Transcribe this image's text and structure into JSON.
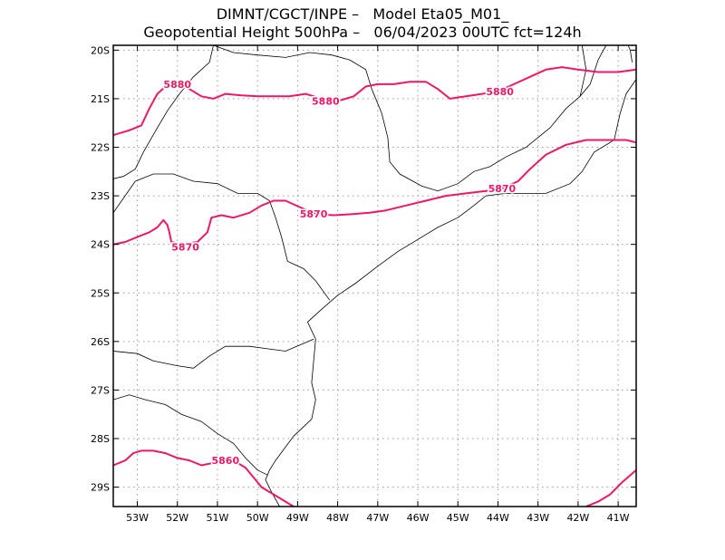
{
  "header": {
    "line1": "DIMNT/CGCT/INPE –   Model Eta05_M01_",
    "line2": "Geopotential Height 500hPa –   06/04/2023 00UTC fct=124h"
  },
  "map": {
    "lon_range": [
      -53.6,
      -40.55
    ],
    "lat_range": [
      -29.4,
      -19.9
    ],
    "lon_ticks": [
      -53,
      -52,
      -51,
      -50,
      -49,
      -48,
      -47,
      -46,
      -45,
      -44,
      -43,
      -42,
      -41
    ],
    "lon_tick_labels": [
      "53W",
      "52W",
      "51W",
      "50W",
      "49W",
      "48W",
      "47W",
      "46W",
      "45W",
      "44W",
      "43W",
      "42W",
      "41W"
    ],
    "lat_ticks": [
      -20,
      -21,
      -22,
      -23,
      -24,
      -25,
      -26,
      -27,
      -28,
      -29
    ],
    "lat_tick_labels": [
      "20S",
      "21S",
      "22S",
      "23S",
      "24S",
      "25S",
      "26S",
      "27S",
      "28S",
      "29S"
    ],
    "colors": {
      "contour": "#ee1866",
      "coast": "#000000",
      "grid": "#999999",
      "frame": "#000000"
    }
  },
  "contours": [
    {
      "value": 5880,
      "labels": [
        "5880",
        "5880",
        "5880"
      ],
      "label_lonlat": [
        [
          -52.0,
          -20.7
        ],
        [
          -48.3,
          -21.05
        ],
        [
          -43.95,
          -20.85
        ]
      ],
      "lonlat": [
        [
          -53.6,
          -21.75
        ],
        [
          -53.2,
          -21.65
        ],
        [
          -52.9,
          -21.55
        ],
        [
          -52.7,
          -21.2
        ],
        [
          -52.5,
          -20.9
        ],
        [
          -52.3,
          -20.75
        ],
        [
          -52.0,
          -20.7
        ],
        [
          -51.7,
          -20.8
        ],
        [
          -51.4,
          -20.95
        ],
        [
          -51.1,
          -21.0
        ],
        [
          -50.8,
          -20.9
        ],
        [
          -50.4,
          -20.93
        ],
        [
          -50.0,
          -20.95
        ],
        [
          -49.6,
          -20.95
        ],
        [
          -49.2,
          -20.95
        ],
        [
          -48.8,
          -20.9
        ],
        [
          -48.4,
          -21.0
        ],
        [
          -48.0,
          -21.05
        ],
        [
          -47.6,
          -20.95
        ],
        [
          -47.3,
          -20.75
        ],
        [
          -47.0,
          -20.7
        ],
        [
          -46.6,
          -20.7
        ],
        [
          -46.2,
          -20.65
        ],
        [
          -45.8,
          -20.65
        ],
        [
          -45.5,
          -20.8
        ],
        [
          -45.2,
          -21.0
        ],
        [
          -44.8,
          -20.95
        ],
        [
          -44.4,
          -20.9
        ],
        [
          -44.0,
          -20.85
        ],
        [
          -43.6,
          -20.7
        ],
        [
          -43.2,
          -20.55
        ],
        [
          -42.8,
          -20.4
        ],
        [
          -42.4,
          -20.35
        ],
        [
          -42.0,
          -20.4
        ],
        [
          -41.5,
          -20.45
        ],
        [
          -41.0,
          -20.45
        ],
        [
          -40.55,
          -20.4
        ]
      ]
    },
    {
      "value": 5870,
      "labels": [
        "5870",
        "5870",
        "5870"
      ],
      "label_lonlat": [
        [
          -51.8,
          -24.05
        ],
        [
          -48.6,
          -23.37
        ],
        [
          -43.9,
          -22.85
        ]
      ],
      "lonlat": [
        [
          -53.6,
          -24.0
        ],
        [
          -53.3,
          -23.95
        ],
        [
          -53.0,
          -23.85
        ],
        [
          -52.7,
          -23.75
        ],
        [
          -52.5,
          -23.65
        ],
        [
          -52.35,
          -23.5
        ],
        [
          -52.25,
          -23.6
        ],
        [
          -52.2,
          -23.75
        ],
        [
          -52.15,
          -23.95
        ],
        [
          -51.9,
          -24.0
        ],
        [
          -51.5,
          -23.95
        ],
        [
          -51.25,
          -23.75
        ],
        [
          -51.15,
          -23.45
        ],
        [
          -50.9,
          -23.4
        ],
        [
          -50.6,
          -23.45
        ],
        [
          -50.2,
          -23.35
        ],
        [
          -49.9,
          -23.2
        ],
        [
          -49.6,
          -23.1
        ],
        [
          -49.3,
          -23.1
        ],
        [
          -48.9,
          -23.25
        ],
        [
          -48.5,
          -23.38
        ],
        [
          -48.1,
          -23.4
        ],
        [
          -47.7,
          -23.38
        ],
        [
          -47.2,
          -23.35
        ],
        [
          -46.8,
          -23.3
        ],
        [
          -46.3,
          -23.2
        ],
        [
          -45.8,
          -23.1
        ],
        [
          -45.3,
          -23.0
        ],
        [
          -44.8,
          -22.95
        ],
        [
          -44.3,
          -22.9
        ],
        [
          -43.9,
          -22.85
        ],
        [
          -43.5,
          -22.7
        ],
        [
          -43.2,
          -22.45
        ],
        [
          -42.8,
          -22.15
        ],
        [
          -42.3,
          -21.95
        ],
        [
          -41.8,
          -21.85
        ],
        [
          -41.3,
          -21.85
        ],
        [
          -40.8,
          -21.85
        ],
        [
          -40.55,
          -21.9
        ]
      ]
    },
    {
      "value": 5860,
      "labels": [
        "5860"
      ],
      "label_lonlat": [
        [
          -50.8,
          -28.45
        ]
      ],
      "lonlat": [
        [
          -53.6,
          -28.55
        ],
        [
          -53.3,
          -28.45
        ],
        [
          -53.1,
          -28.3
        ],
        [
          -52.9,
          -28.25
        ],
        [
          -52.6,
          -28.25
        ],
        [
          -52.3,
          -28.3
        ],
        [
          -52.0,
          -28.4
        ],
        [
          -51.7,
          -28.45
        ],
        [
          -51.4,
          -28.55
        ],
        [
          -51.1,
          -28.5
        ],
        [
          -50.8,
          -28.45
        ],
        [
          -50.5,
          -28.5
        ],
        [
          -50.3,
          -28.6
        ],
        [
          -50.1,
          -28.8
        ],
        [
          -49.9,
          -29.0
        ],
        [
          -49.6,
          -29.15
        ],
        [
          -49.3,
          -29.3
        ],
        [
          -49.1,
          -29.4
        ]
      ]
    },
    {
      "value": 5860,
      "labels": [],
      "label_lonlat": [],
      "lonlat": [
        [
          -41.8,
          -29.4
        ],
        [
          -41.5,
          -29.3
        ],
        [
          -41.2,
          -29.15
        ],
        [
          -40.9,
          -28.9
        ],
        [
          -40.55,
          -28.65
        ]
      ]
    }
  ],
  "boundaries": [
    {
      "name": "coastline",
      "lonlat": [
        [
          -49.45,
          -29.4
        ],
        [
          -49.65,
          -29.1
        ],
        [
          -49.8,
          -28.85
        ],
        [
          -49.7,
          -28.65
        ],
        [
          -49.55,
          -28.45
        ],
        [
          -49.1,
          -27.95
        ],
        [
          -48.65,
          -27.6
        ],
        [
          -48.55,
          -27.2
        ],
        [
          -48.65,
          -26.85
        ],
        [
          -48.6,
          -26.4
        ],
        [
          -48.55,
          -25.95
        ],
        [
          -48.75,
          -25.6
        ],
        [
          -48.35,
          -25.3
        ],
        [
          -48.0,
          -25.05
        ],
        [
          -47.55,
          -24.8
        ],
        [
          -47.0,
          -24.45
        ],
        [
          -46.5,
          -24.15
        ],
        [
          -46.0,
          -23.9
        ],
        [
          -45.5,
          -23.65
        ],
        [
          -45.0,
          -23.45
        ],
        [
          -44.6,
          -23.2
        ],
        [
          -44.3,
          -23.0
        ],
        [
          -43.8,
          -22.95
        ],
        [
          -43.3,
          -22.95
        ],
        [
          -42.8,
          -22.95
        ],
        [
          -42.2,
          -22.75
        ],
        [
          -41.9,
          -22.5
        ],
        [
          -41.6,
          -22.1
        ],
        [
          -41.1,
          -21.85
        ],
        [
          -40.95,
          -21.3
        ],
        [
          -40.8,
          -20.9
        ],
        [
          -40.55,
          -20.6
        ]
      ]
    },
    {
      "name": "border-sp-pr",
      "lonlat": [
        [
          -53.05,
          -22.7
        ],
        [
          -52.6,
          -22.55
        ],
        [
          -52.1,
          -22.55
        ],
        [
          -51.6,
          -22.7
        ],
        [
          -51.0,
          -22.75
        ],
        [
          -50.5,
          -22.95
        ],
        [
          -50.0,
          -22.95
        ],
        [
          -49.7,
          -23.1
        ],
        [
          -49.55,
          -23.45
        ],
        [
          -49.4,
          -23.85
        ],
        [
          -49.25,
          -24.35
        ],
        [
          -48.85,
          -24.5
        ],
        [
          -48.55,
          -24.75
        ],
        [
          -48.2,
          -25.15
        ]
      ]
    },
    {
      "name": "border-pr-sc",
      "lonlat": [
        [
          -53.6,
          -26.2
        ],
        [
          -53.0,
          -26.25
        ],
        [
          -52.6,
          -26.4
        ],
        [
          -52.0,
          -26.5
        ],
        [
          -51.6,
          -26.55
        ],
        [
          -51.2,
          -26.3
        ],
        [
          -50.8,
          -26.1
        ],
        [
          -50.2,
          -26.1
        ],
        [
          -49.75,
          -26.15
        ],
        [
          -49.3,
          -26.2
        ],
        [
          -48.6,
          -25.95
        ]
      ]
    },
    {
      "name": "border-sc-rs",
      "lonlat": [
        [
          -53.6,
          -27.2
        ],
        [
          -53.2,
          -27.1
        ],
        [
          -52.8,
          -27.2
        ],
        [
          -52.3,
          -27.3
        ],
        [
          -51.9,
          -27.5
        ],
        [
          -51.4,
          -27.65
        ],
        [
          -51.0,
          -27.9
        ],
        [
          -50.6,
          -28.1
        ],
        [
          -50.3,
          -28.4
        ],
        [
          -50.0,
          -28.65
        ],
        [
          -49.75,
          -28.75
        ]
      ]
    },
    {
      "name": "border-ms-sp",
      "lonlat": [
        [
          -51.1,
          -19.9
        ],
        [
          -51.2,
          -20.25
        ],
        [
          -51.6,
          -20.55
        ],
        [
          -51.95,
          -20.9
        ],
        [
          -52.25,
          -21.25
        ],
        [
          -52.5,
          -21.6
        ],
        [
          -52.85,
          -22.1
        ],
        [
          -53.05,
          -22.45
        ],
        [
          -53.35,
          -22.6
        ],
        [
          -53.6,
          -22.65
        ]
      ]
    },
    {
      "name": "border-sp-mg-north",
      "lonlat": [
        [
          -51.1,
          -19.9
        ],
        [
          -50.6,
          -20.05
        ],
        [
          -50.0,
          -20.1
        ],
        [
          -49.3,
          -20.15
        ],
        [
          -48.7,
          -20.05
        ],
        [
          -48.15,
          -20.1
        ],
        [
          -47.7,
          -20.2
        ],
        [
          -47.3,
          -20.4
        ],
        [
          -47.15,
          -20.8
        ],
        [
          -46.9,
          -21.3
        ],
        [
          -46.75,
          -21.8
        ],
        [
          -46.7,
          -22.3
        ],
        [
          -46.45,
          -22.55
        ],
        [
          -45.9,
          -22.8
        ],
        [
          -45.5,
          -22.9
        ],
        [
          -45.0,
          -22.75
        ],
        [
          -44.6,
          -22.5
        ],
        [
          -44.2,
          -22.4
        ],
        [
          -43.8,
          -22.2
        ],
        [
          -43.3,
          -22.0
        ],
        [
          -42.7,
          -21.6
        ],
        [
          -42.3,
          -21.2
        ],
        [
          -41.95,
          -20.95
        ],
        [
          -41.7,
          -20.7
        ],
        [
          -41.5,
          -20.2
        ],
        [
          -41.3,
          -19.9
        ]
      ]
    },
    {
      "name": "border-mg-es",
      "lonlat": [
        [
          -41.95,
          -20.95
        ],
        [
          -41.8,
          -20.4
        ],
        [
          -41.9,
          -19.9
        ]
      ]
    },
    {
      "name": "border-east-cap",
      "lonlat": [
        [
          -40.75,
          -19.9
        ],
        [
          -40.7,
          -20.0
        ],
        [
          -40.65,
          -20.25
        ]
      ]
    },
    {
      "name": "border-ms-pr-west",
      "lonlat": [
        [
          -53.6,
          -23.35
        ],
        [
          -53.05,
          -22.7
        ]
      ]
    }
  ]
}
